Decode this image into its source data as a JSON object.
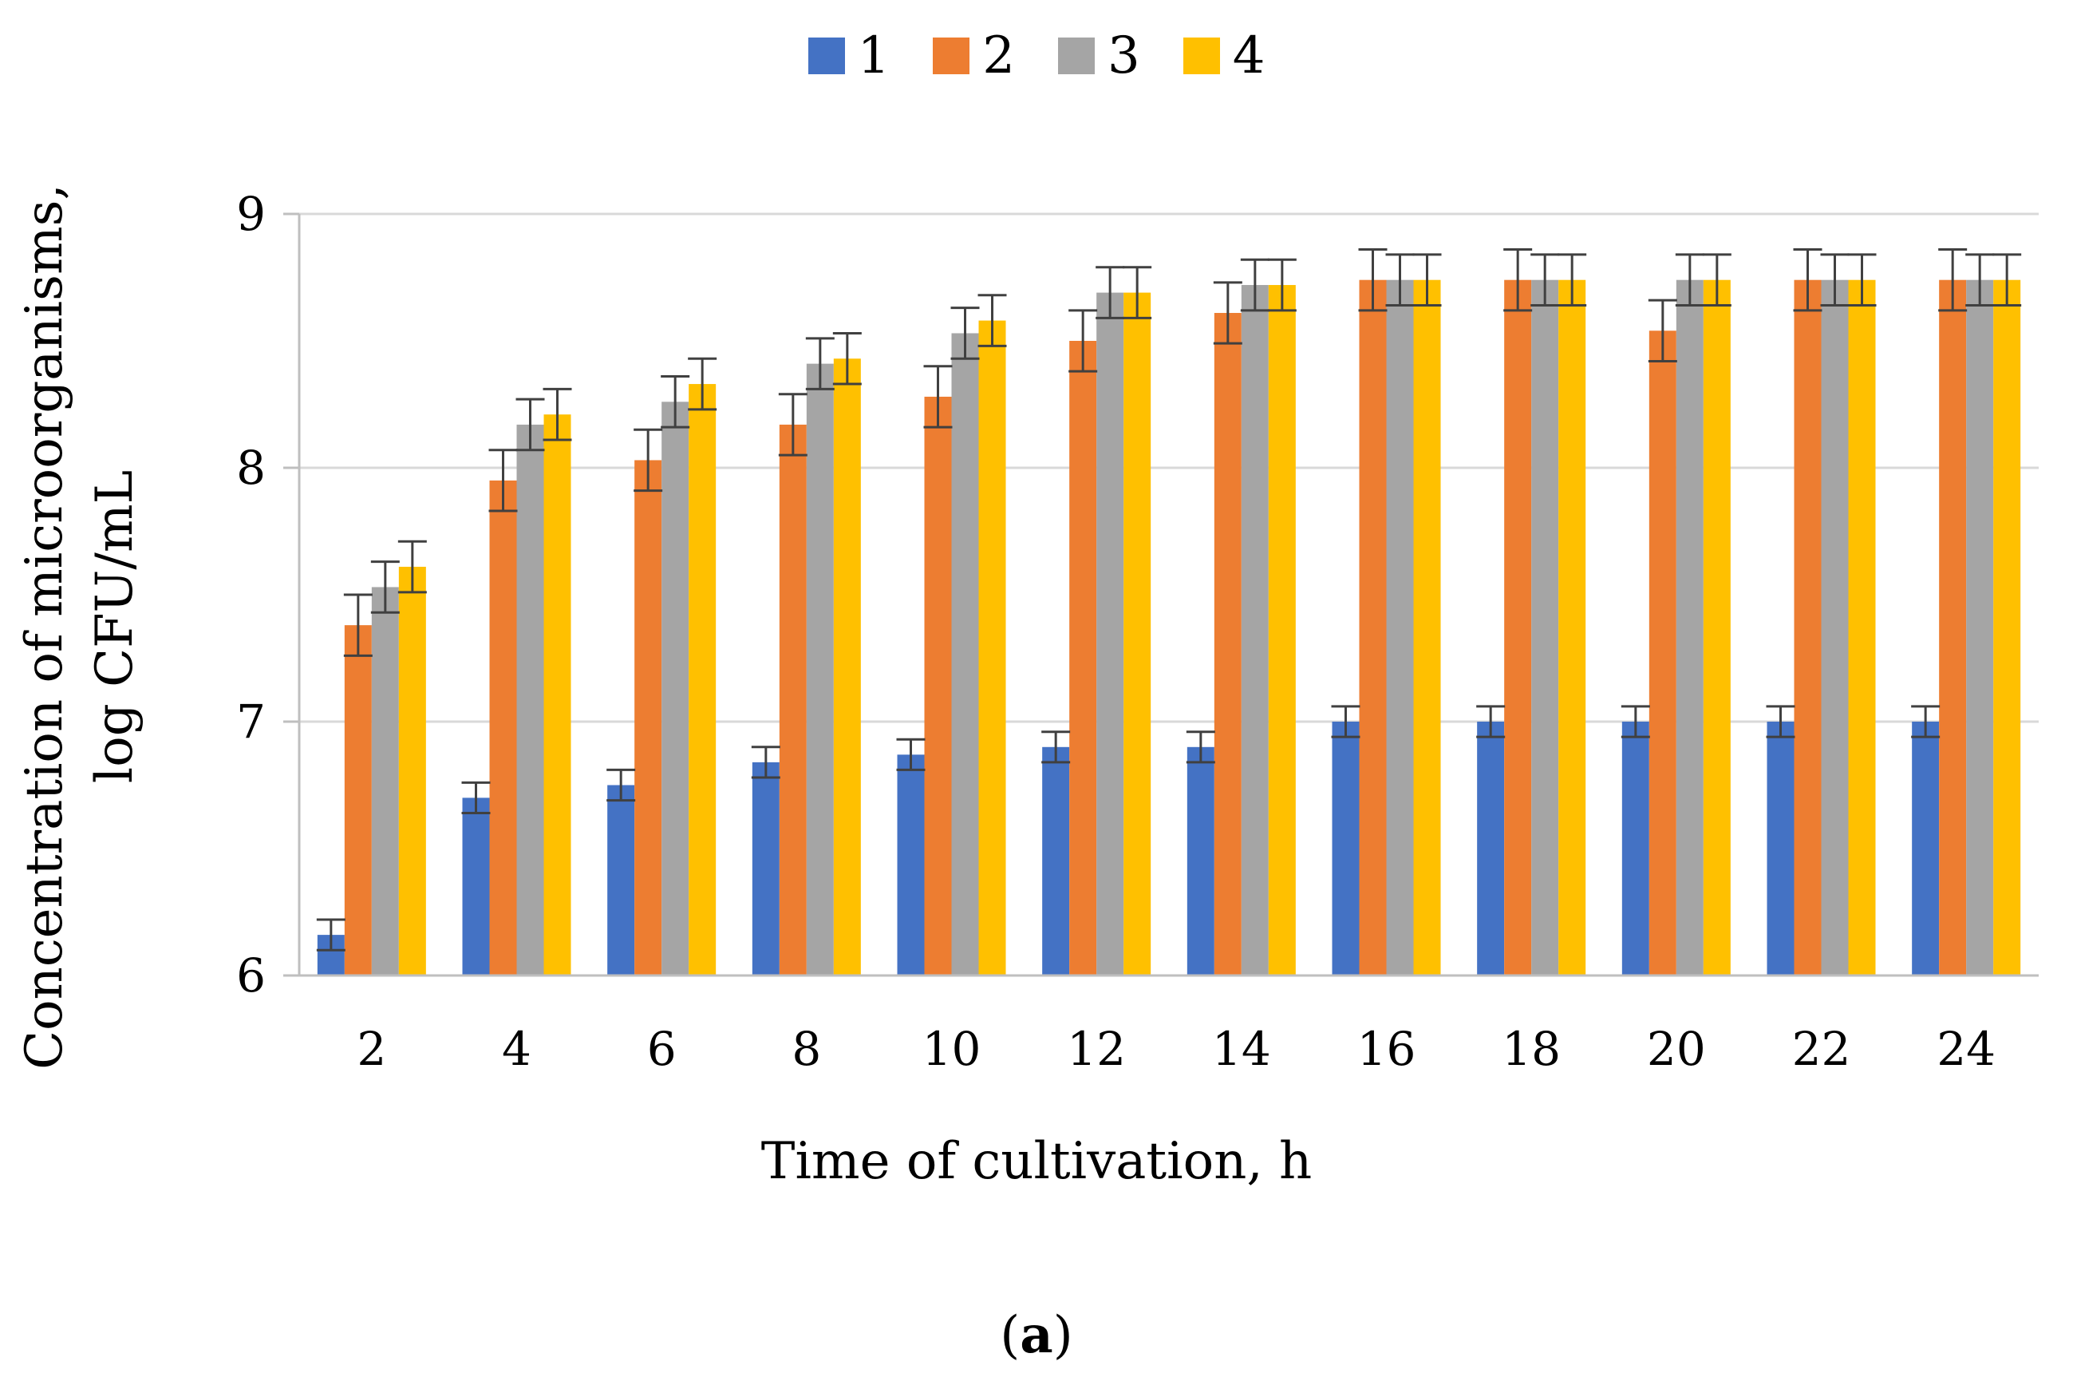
{
  "chart_data": {
    "type": "bar",
    "title": "",
    "xlabel": "Time of cultivation, h",
    "ylabel_lines": [
      "Concentration  of microorganisms,",
      "log CFU/mL"
    ],
    "categories": [
      "2",
      "4",
      "6",
      "8",
      "10",
      "12",
      "14",
      "16",
      "18",
      "20",
      "22",
      "24"
    ],
    "yticks": [
      "6",
      "7",
      "8",
      "9"
    ],
    "ylim": [
      6,
      9
    ],
    "grid": true,
    "legend_position": "top-center",
    "series": [
      {
        "name": "1",
        "color": "#4472C4",
        "values": [
          6.16,
          6.7,
          6.75,
          6.84,
          6.87,
          6.9,
          6.9,
          7.0,
          7.0,
          7.0,
          7.0,
          7.0
        ],
        "errors": [
          0.06,
          0.06,
          0.06,
          0.06,
          0.06,
          0.06,
          0.06,
          0.06,
          0.06,
          0.06,
          0.06,
          0.06
        ]
      },
      {
        "name": "2",
        "color": "#ED7D31",
        "values": [
          7.38,
          7.95,
          8.03,
          8.17,
          8.28,
          8.5,
          8.61,
          8.74,
          8.74,
          8.54,
          8.74,
          8.74
        ],
        "errors": [
          0.12,
          0.12,
          0.12,
          0.12,
          0.12,
          0.12,
          0.12,
          0.12,
          0.12,
          0.12,
          0.12,
          0.12
        ]
      },
      {
        "name": "3",
        "color": "#A5A5A5",
        "values": [
          7.53,
          8.17,
          8.26,
          8.41,
          8.53,
          8.69,
          8.72,
          8.74,
          8.74,
          8.74,
          8.74,
          8.74
        ],
        "errors": [
          0.1,
          0.1,
          0.1,
          0.1,
          0.1,
          0.1,
          0.1,
          0.1,
          0.1,
          0.1,
          0.1,
          0.1
        ]
      },
      {
        "name": "4",
        "color": "#FFC000",
        "values": [
          7.61,
          8.21,
          8.33,
          8.43,
          8.58,
          8.69,
          8.72,
          8.74,
          8.74,
          8.74,
          8.74,
          8.74
        ],
        "errors": [
          0.1,
          0.1,
          0.1,
          0.1,
          0.1,
          0.1,
          0.1,
          0.1,
          0.1,
          0.1,
          0.1,
          0.1
        ]
      }
    ]
  },
  "caption": {
    "open": "(",
    "letter": "a",
    "close": ")"
  }
}
